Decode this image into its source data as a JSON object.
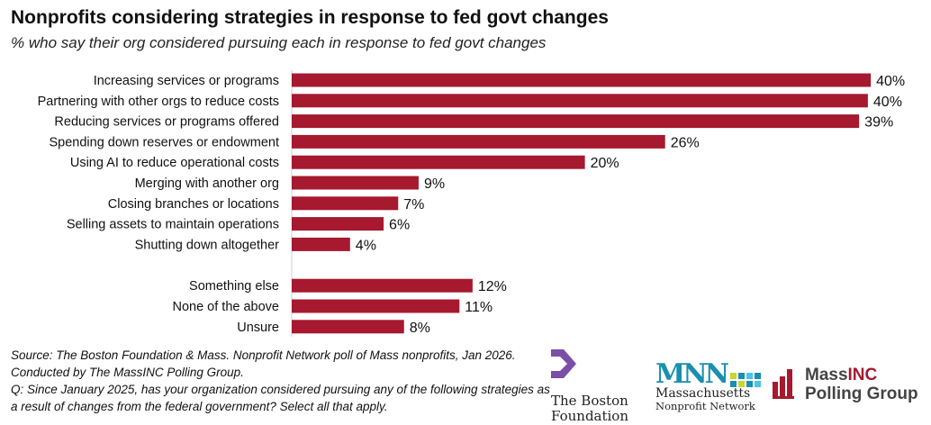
{
  "chart_data": {
    "type": "bar",
    "orientation": "horizontal",
    "title": "Nonprofits considering strategies in response to fed govt changes",
    "subtitle": "% who say their org considered pursuing each in response to fed govt changes",
    "categories": [
      "Increasing services or programs",
      "Partnering with other orgs to reduce costs",
      "Reducing services or programs offered",
      "Spending down reserves or endowment",
      "Using AI to reduce operational costs",
      "Merging with another org",
      "Closing branches or locations",
      "Selling assets to maintain operations",
      "Shutting down altogether",
      "Something else",
      "None of the above",
      "Unsure"
    ],
    "values": [
      39.7,
      39.5,
      38.9,
      25.6,
      20.1,
      8.7,
      7.3,
      6.3,
      4.0,
      12.4,
      11.5,
      7.7
    ],
    "labels": [
      "40%",
      "40%",
      "39%",
      "26%",
      "20%",
      "9%",
      "7%",
      "6%",
      "4%",
      "12%",
      "11%",
      "8%"
    ],
    "group_break_after": 8,
    "xlim": [
      0,
      42
    ],
    "color": "#A6192E",
    "grid": false
  },
  "notes": {
    "source": "Source: The Boston Foundation & Mass. Nonprofit Network poll of Mass nonprofits, Jan 2026.",
    "conducted": "Conducted  by The MassINC Polling Group.",
    "question": "Q: Since January 2025, has your organization considered pursuing any of the following strategies as a result of changes from the federal government? Select all that apply."
  },
  "logos": {
    "boston_foundation": "The Boston Foundation",
    "mnn_mark": "MNN",
    "mnn_line1": "Massachusetts",
    "mnn_line2": "Nonprofit Network",
    "massinc_a": "Mass",
    "massinc_b": "INC",
    "massinc_line2": "Polling Group"
  }
}
